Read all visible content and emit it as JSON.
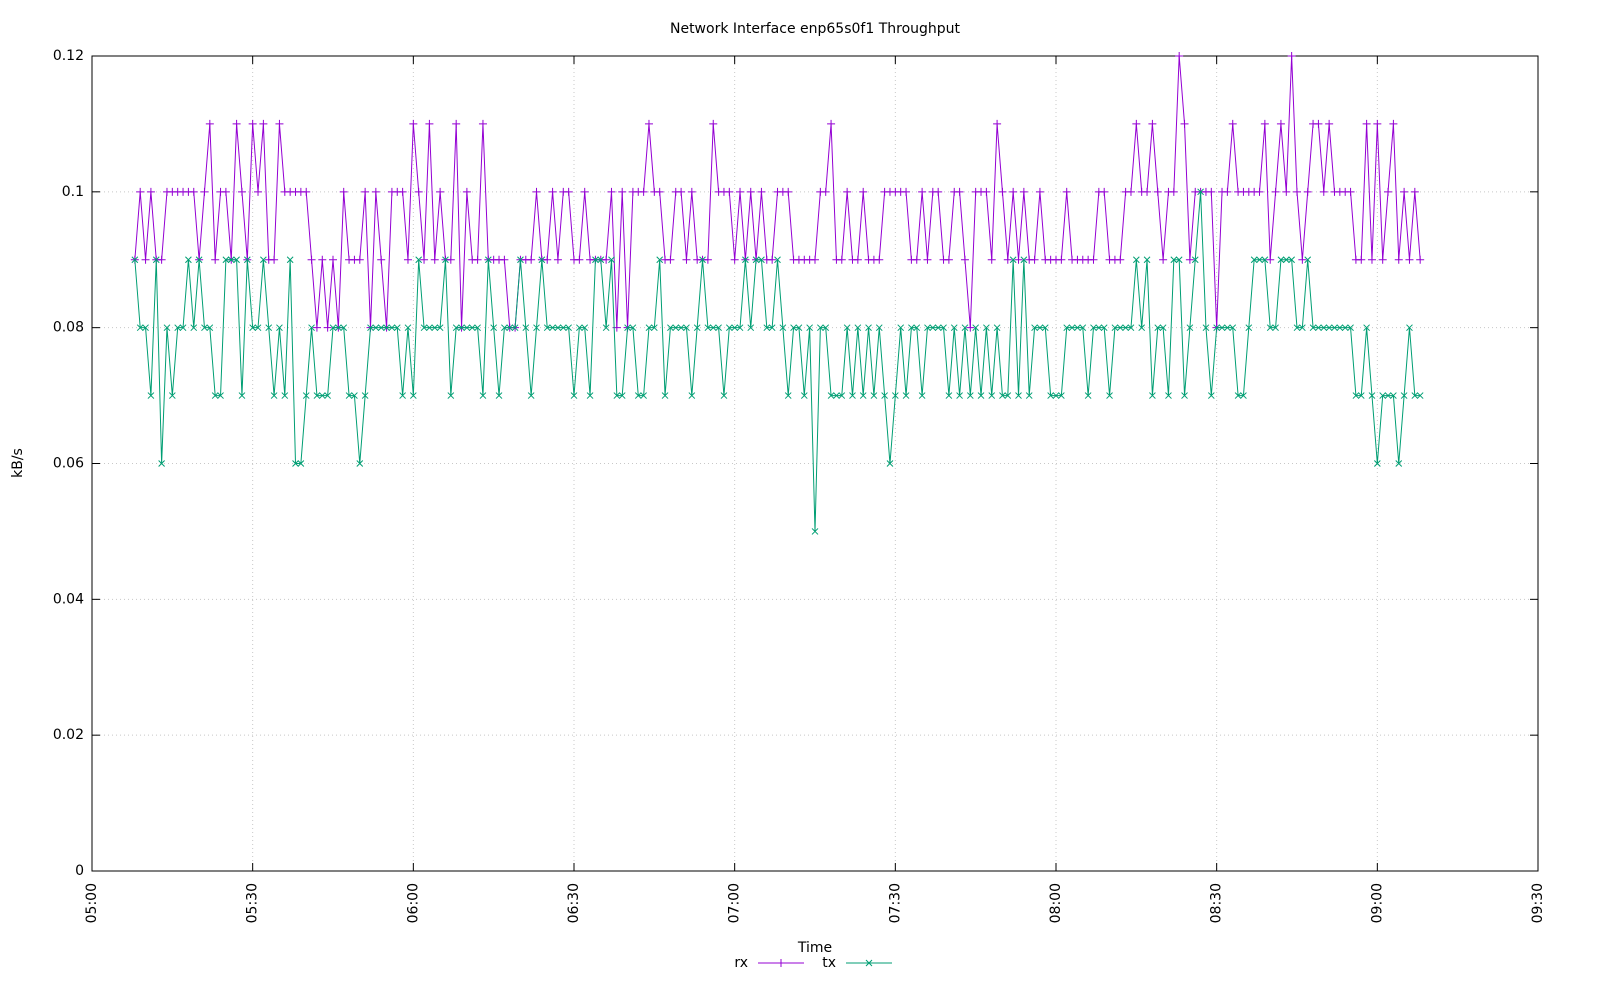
{
  "chart_data": {
    "type": "line",
    "title": "Network Interface enp65s0f1 Throughput",
    "x_label": "Time",
    "y_label": "kB/s",
    "x": [
      "05:08",
      "05:09",
      "05:10",
      "05:11",
      "05:12",
      "05:13",
      "05:14",
      "05:15",
      "05:16",
      "05:17",
      "05:18",
      "05:19",
      "05:20",
      "05:21",
      "05:22",
      "05:23",
      "05:24",
      "05:25",
      "05:26",
      "05:27",
      "05:28",
      "05:29",
      "05:30",
      "05:31",
      "05:32",
      "05:33",
      "05:34",
      "05:35",
      "05:36",
      "05:37",
      "05:38",
      "05:39",
      "05:40",
      "05:41",
      "05:42",
      "05:43",
      "05:44",
      "05:45",
      "05:46",
      "05:47",
      "05:48",
      "05:49",
      "05:50",
      "05:51",
      "05:52",
      "05:53",
      "05:54",
      "05:55",
      "05:56",
      "05:57",
      "05:58",
      "05:59",
      "06:00",
      "06:01",
      "06:02",
      "06:03",
      "06:04",
      "06:05",
      "06:06",
      "06:07",
      "06:08",
      "06:09",
      "06:10",
      "06:11",
      "06:12",
      "06:13",
      "06:14",
      "06:15",
      "06:16",
      "06:17",
      "06:18",
      "06:19",
      "06:20",
      "06:21",
      "06:22",
      "06:23",
      "06:24",
      "06:25",
      "06:26",
      "06:27",
      "06:28",
      "06:29",
      "06:30",
      "06:31",
      "06:32",
      "06:33",
      "06:34",
      "06:35",
      "06:36",
      "06:37",
      "06:38",
      "06:39",
      "06:40",
      "06:41",
      "06:42",
      "06:43",
      "06:44",
      "06:45",
      "06:46",
      "06:47",
      "06:48",
      "06:49",
      "06:50",
      "06:51",
      "06:52",
      "06:53",
      "06:54",
      "06:55",
      "06:56",
      "06:57",
      "06:58",
      "06:59",
      "07:00",
      "07:01",
      "07:02",
      "07:03",
      "07:04",
      "07:05",
      "07:06",
      "07:07",
      "07:08",
      "07:09",
      "07:10",
      "07:11",
      "07:12",
      "07:13",
      "07:14",
      "07:15",
      "07:16",
      "07:17",
      "07:18",
      "07:19",
      "07:20",
      "07:21",
      "07:22",
      "07:23",
      "07:24",
      "07:25",
      "07:26",
      "07:27",
      "07:28",
      "07:29",
      "07:30",
      "07:31",
      "07:32",
      "07:33",
      "07:34",
      "07:35",
      "07:36",
      "07:37",
      "07:38",
      "07:39",
      "07:40",
      "07:41",
      "07:42",
      "07:43",
      "07:44",
      "07:45",
      "07:46",
      "07:47",
      "07:48",
      "07:49",
      "07:50",
      "07:51",
      "07:52",
      "07:53",
      "07:54",
      "07:55",
      "07:56",
      "07:57",
      "07:58",
      "07:59",
      "08:00",
      "08:01",
      "08:02",
      "08:03",
      "08:04",
      "08:05",
      "08:06",
      "08:07",
      "08:08",
      "08:09",
      "08:10",
      "08:11",
      "08:12",
      "08:13",
      "08:14",
      "08:15",
      "08:16",
      "08:17",
      "08:18",
      "08:19",
      "08:20",
      "08:21",
      "08:22",
      "08:23",
      "08:24",
      "08:25",
      "08:26",
      "08:27",
      "08:28",
      "08:29",
      "08:30",
      "08:31",
      "08:32",
      "08:33",
      "08:34",
      "08:35",
      "08:36",
      "08:37",
      "08:38",
      "08:39",
      "08:40",
      "08:41",
      "08:42",
      "08:43",
      "08:44",
      "08:45",
      "08:46",
      "08:47",
      "08:48",
      "08:49",
      "08:50",
      "08:51",
      "08:52",
      "08:53",
      "08:54",
      "08:55",
      "08:56",
      "08:57",
      "08:58",
      "08:59",
      "09:00",
      "09:01",
      "09:02",
      "09:03",
      "09:04",
      "09:05",
      "09:06",
      "09:07",
      "09:08"
    ],
    "series": [
      {
        "name": "rx",
        "color": "#9400d3",
        "marker": "plus",
        "values": [
          0.09,
          0.1,
          0.09,
          0.1,
          0.09,
          0.09,
          0.1,
          0.1,
          0.1,
          0.1,
          0.1,
          0.1,
          0.09,
          0.1,
          0.11,
          0.09,
          0.1,
          0.1,
          0.09,
          0.11,
          0.1,
          0.09,
          0.11,
          0.1,
          0.11,
          0.09,
          0.09,
          0.11,
          0.1,
          0.1,
          0.1,
          0.1,
          0.1,
          0.09,
          0.08,
          0.09,
          0.08,
          0.09,
          0.08,
          0.1,
          0.09,
          0.09,
          0.09,
          0.1,
          0.08,
          0.1,
          0.09,
          0.08,
          0.1,
          0.1,
          0.1,
          0.09,
          0.11,
          0.1,
          0.09,
          0.11,
          0.09,
          0.1,
          0.09,
          0.09,
          0.11,
          0.08,
          0.1,
          0.09,
          0.09,
          0.11,
          0.09,
          0.09,
          0.09,
          0.09,
          0.08,
          0.08,
          0.09,
          0.09,
          0.09,
          0.1,
          0.09,
          0.09,
          0.1,
          0.09,
          0.1,
          0.1,
          0.09,
          0.09,
          0.1,
          0.09,
          0.09,
          0.09,
          0.09,
          0.1,
          0.08,
          0.1,
          0.08,
          0.1,
          0.1,
          0.1,
          0.11,
          0.1,
          0.1,
          0.09,
          0.09,
          0.1,
          0.1,
          0.09,
          0.1,
          0.09,
          0.09,
          0.09,
          0.11,
          0.1,
          0.1,
          0.1,
          0.09,
          0.1,
          0.09,
          0.1,
          0.09,
          0.1,
          0.09,
          0.09,
          0.1,
          0.1,
          0.1,
          0.09,
          0.09,
          0.09,
          0.09,
          0.09,
          0.1,
          0.1,
          0.11,
          0.09,
          0.09,
          0.1,
          0.09,
          0.09,
          0.1,
          0.09,
          0.09,
          0.09,
          0.1,
          0.1,
          0.1,
          0.1,
          0.1,
          0.09,
          0.09,
          0.1,
          0.09,
          0.1,
          0.1,
          0.09,
          0.09,
          0.1,
          0.1,
          0.09,
          0.08,
          0.1,
          0.1,
          0.1,
          0.09,
          0.11,
          0.1,
          0.09,
          0.1,
          0.09,
          0.1,
          0.09,
          0.09,
          0.1,
          0.09,
          0.09,
          0.09,
          0.09,
          0.1,
          0.09,
          0.09,
          0.09,
          0.09,
          0.09,
          0.1,
          0.1,
          0.09,
          0.09,
          0.09,
          0.1,
          0.1,
          0.11,
          0.1,
          0.1,
          0.11,
          0.1,
          0.09,
          0.1,
          0.1,
          0.12,
          0.11,
          0.09,
          0.1,
          0.1,
          0.1,
          0.1,
          0.08,
          0.1,
          0.1,
          0.11,
          0.1,
          0.1,
          0.1,
          0.1,
          0.1,
          0.11,
          0.09,
          0.1,
          0.11,
          0.1,
          0.12,
          0.1,
          0.09,
          0.1,
          0.11,
          0.11,
          0.1,
          0.11,
          0.1,
          0.1,
          0.1,
          0.1,
          0.09,
          0.09,
          0.11,
          0.09,
          0.11,
          0.09,
          0.1,
          0.11,
          0.09,
          0.1,
          0.09,
          0.1,
          0.09
        ]
      },
      {
        "name": "tx",
        "color": "#009e73",
        "marker": "cross",
        "values": [
          0.09,
          0.08,
          0.08,
          0.07,
          0.09,
          0.06,
          0.08,
          0.07,
          0.08,
          0.08,
          0.09,
          0.08,
          0.09,
          0.08,
          0.08,
          0.07,
          0.07,
          0.09,
          0.09,
          0.09,
          0.07,
          0.09,
          0.08,
          0.08,
          0.09,
          0.08,
          0.07,
          0.08,
          0.07,
          0.09,
          0.06,
          0.06,
          0.07,
          0.08,
          0.07,
          0.07,
          0.07,
          0.08,
          0.08,
          0.08,
          0.07,
          0.07,
          0.06,
          0.07,
          0.08,
          0.08,
          0.08,
          0.08,
          0.08,
          0.08,
          0.07,
          0.08,
          0.07,
          0.09,
          0.08,
          0.08,
          0.08,
          0.08,
          0.09,
          0.07,
          0.08,
          0.08,
          0.08,
          0.08,
          0.08,
          0.07,
          0.09,
          0.08,
          0.07,
          0.08,
          0.08,
          0.08,
          0.09,
          0.08,
          0.07,
          0.08,
          0.09,
          0.08,
          0.08,
          0.08,
          0.08,
          0.08,
          0.07,
          0.08,
          0.08,
          0.07,
          0.09,
          0.09,
          0.08,
          0.09,
          0.07,
          0.07,
          0.08,
          0.08,
          0.07,
          0.07,
          0.08,
          0.08,
          0.09,
          0.07,
          0.08,
          0.08,
          0.08,
          0.08,
          0.07,
          0.08,
          0.09,
          0.08,
          0.08,
          0.08,
          0.07,
          0.08,
          0.08,
          0.08,
          0.09,
          0.08,
          0.09,
          0.09,
          0.08,
          0.08,
          0.09,
          0.08,
          0.07,
          0.08,
          0.08,
          0.07,
          0.08,
          0.05,
          0.08,
          0.08,
          0.07,
          0.07,
          0.07,
          0.08,
          0.07,
          0.08,
          0.07,
          0.08,
          0.07,
          0.08,
          0.07,
          0.06,
          0.07,
          0.08,
          0.07,
          0.08,
          0.08,
          0.07,
          0.08,
          0.08,
          0.08,
          0.08,
          0.07,
          0.08,
          0.07,
          0.08,
          0.07,
          0.08,
          0.07,
          0.08,
          0.07,
          0.08,
          0.07,
          0.07,
          0.09,
          0.07,
          0.09,
          0.07,
          0.08,
          0.08,
          0.08,
          0.07,
          0.07,
          0.07,
          0.08,
          0.08,
          0.08,
          0.08,
          0.07,
          0.08,
          0.08,
          0.08,
          0.07,
          0.08,
          0.08,
          0.08,
          0.08,
          0.09,
          0.08,
          0.09,
          0.07,
          0.08,
          0.08,
          0.07,
          0.09,
          0.09,
          0.07,
          0.08,
          0.09,
          0.1,
          0.08,
          0.07,
          0.08,
          0.08,
          0.08,
          0.08,
          0.07,
          0.07,
          0.08,
          0.09,
          0.09,
          0.09,
          0.08,
          0.08,
          0.09,
          0.09,
          0.09,
          0.08,
          0.08,
          0.09,
          0.08,
          0.08,
          0.08,
          0.08,
          0.08,
          0.08,
          0.08,
          0.08,
          0.07,
          0.07,
          0.08,
          0.07,
          0.06,
          0.07,
          0.07,
          0.07,
          0.06,
          0.07,
          0.08,
          0.07,
          0.07
        ]
      }
    ],
    "xlim": [
      "05:00",
      "09:30"
    ],
    "xticks": [
      "05:00",
      "05:30",
      "06:00",
      "06:30",
      "07:00",
      "07:30",
      "08:00",
      "08:30",
      "09:00",
      "09:30"
    ],
    "ylim": [
      0,
      0.12
    ],
    "yticks": [
      0,
      0.02,
      0.04,
      0.06,
      0.08,
      0.1,
      0.12
    ],
    "grid": true,
    "legend": "bottom"
  }
}
